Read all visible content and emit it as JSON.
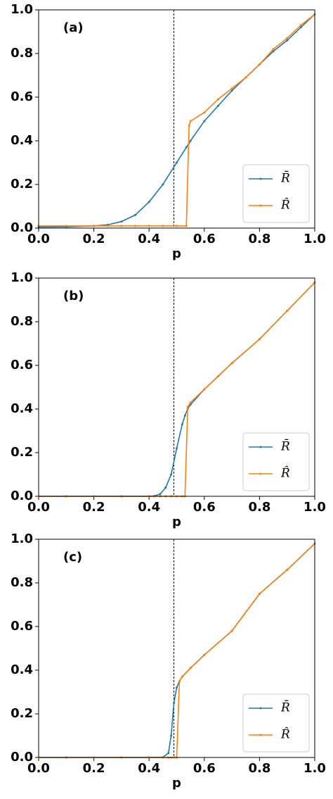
{
  "chart_data": [
    {
      "type": "line",
      "panel_label": "(a)",
      "xlabel": "p",
      "xlim": [
        0,
        1
      ],
      "ylim": [
        0,
        1
      ],
      "xticks": [
        {
          "value": 0,
          "label": "0.0"
        },
        0.2,
        0.4,
        0.6,
        0.8,
        {
          "value": 1,
          "label": "1.0"
        }
      ],
      "yticks": [
        {
          "value": 0,
          "label": "0.0"
        },
        0.2,
        0.4,
        0.6,
        0.8,
        {
          "value": 1,
          "label": "1.0"
        }
      ],
      "vline": 0.49,
      "legend": "lower right",
      "x": [
        0,
        0.1,
        0.2,
        0.25,
        0.3,
        0.35,
        0.4,
        0.45,
        0.5,
        0.535,
        0.545,
        0.55,
        0.6,
        0.65,
        0.7,
        0.75,
        0.8,
        0.85,
        0.9,
        0.95,
        1.0
      ],
      "series": [
        {
          "name": "R̄",
          "color": "#1f77b4",
          "values": [
            0.005,
            0.006,
            0.01,
            0.015,
            0.03,
            0.06,
            0.12,
            0.2,
            0.3,
            0.37,
            0.39,
            0.4,
            0.49,
            0.56,
            0.63,
            0.69,
            0.75,
            0.81,
            0.86,
            0.92,
            0.98
          ]
        },
        {
          "name": "R̂",
          "color": "#ff7f0e",
          "values": [
            0.01,
            0.01,
            0.01,
            0.01,
            0.01,
            0.01,
            0.01,
            0.01,
            0.01,
            0.01,
            0.47,
            0.49,
            0.53,
            0.59,
            0.64,
            0.69,
            0.75,
            0.82,
            0.87,
            0.93,
            0.98
          ]
        }
      ]
    },
    {
      "type": "line",
      "panel_label": "(b)",
      "xlabel": "p",
      "xlim": [
        0,
        1
      ],
      "ylim": [
        0,
        1
      ],
      "xticks": [
        {
          "value": 0,
          "label": "0.0"
        },
        0.2,
        0.4,
        0.6,
        0.8,
        {
          "value": 1,
          "label": "1.0"
        }
      ],
      "yticks": [
        {
          "value": 0,
          "label": "0.0"
        },
        0.2,
        0.4,
        0.6,
        0.8,
        {
          "value": 1,
          "label": "1.0"
        }
      ],
      "vline": 0.49,
      "legend": "lower right",
      "x": [
        0,
        0.1,
        0.2,
        0.3,
        0.4,
        0.42,
        0.44,
        0.46,
        0.48,
        0.5,
        0.52,
        0.53,
        0.54,
        0.55,
        0.6,
        0.65,
        0.7,
        0.8,
        0.9,
        1.0
      ],
      "series": [
        {
          "name": "R̄",
          "color": "#1f77b4",
          "values": [
            0,
            0,
            0,
            0,
            0,
            0.002,
            0.01,
            0.04,
            0.1,
            0.22,
            0.33,
            0.37,
            0.4,
            0.42,
            0.49,
            0.55,
            0.61,
            0.72,
            0.85,
            0.98
          ]
        },
        {
          "name": "R̂",
          "color": "#ff7f0e",
          "values": [
            0,
            0,
            0,
            0,
            0,
            0,
            0,
            0,
            0,
            0,
            0,
            0,
            0.41,
            0.43,
            0.49,
            0.55,
            0.61,
            0.72,
            0.85,
            0.98
          ]
        }
      ]
    },
    {
      "type": "line",
      "panel_label": "(c)",
      "xlabel": "p",
      "xlim": [
        0,
        1
      ],
      "ylim": [
        0,
        1
      ],
      "xticks": [
        {
          "value": 0,
          "label": "0.0"
        },
        0.2,
        0.4,
        0.6,
        0.8,
        {
          "value": 1,
          "label": "1.0"
        }
      ],
      "yticks": [
        {
          "value": 0,
          "label": "0.0"
        },
        0.2,
        0.4,
        0.6,
        0.8,
        {
          "value": 1,
          "label": "1.0"
        }
      ],
      "vline": 0.49,
      "legend": "lower right",
      "x": [
        0,
        0.1,
        0.2,
        0.3,
        0.4,
        0.45,
        0.47,
        0.48,
        0.49,
        0.5,
        0.51,
        0.52,
        0.55,
        0.6,
        0.7,
        0.8,
        0.9,
        1.0
      ],
      "series": [
        {
          "name": "R̄",
          "color": "#1f77b4",
          "values": [
            0,
            0,
            0,
            0,
            0,
            0.001,
            0.02,
            0.1,
            0.25,
            0.32,
            0.35,
            0.37,
            0.41,
            0.47,
            0.58,
            0.75,
            0.86,
            0.98
          ]
        },
        {
          "name": "R̂",
          "color": "#ff7f0e",
          "values": [
            0,
            0,
            0,
            0,
            0,
            0,
            0,
            0,
            0,
            0,
            0.35,
            0.37,
            0.41,
            0.47,
            0.58,
            0.75,
            0.86,
            0.98
          ]
        }
      ]
    }
  ]
}
